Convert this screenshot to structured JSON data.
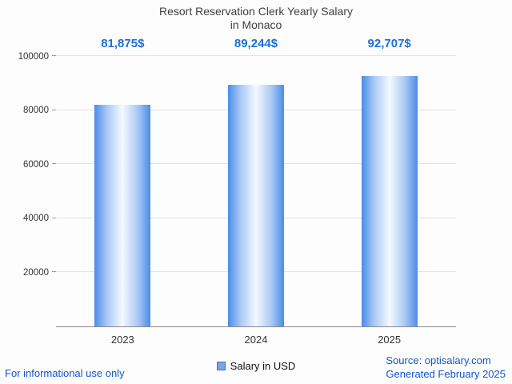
{
  "title": {
    "line1": "Resort Reservation Clerk Yearly Salary",
    "line2": "in Monaco"
  },
  "chart_data": {
    "type": "bar",
    "title": "Resort Reservation Clerk Yearly Salary in Monaco",
    "categories": [
      "2023",
      "2024",
      "2025"
    ],
    "values": [
      81875,
      89244,
      92707
    ],
    "value_labels": [
      "81,875$",
      "89,244$",
      "92,707$"
    ],
    "xlabel": "",
    "ylabel": "",
    "ylim": [
      0,
      100000
    ],
    "yticks": [
      20000,
      40000,
      60000,
      80000,
      100000
    ],
    "grid": true,
    "legend_entries": [
      "Salary in USD"
    ],
    "legend_position": "bottom"
  },
  "legend": {
    "label": "Salary in USD"
  },
  "footer": {
    "left": "For informational use only",
    "source": "Source: optisalary.com",
    "generated": "Generated February 2025"
  },
  "colors": {
    "bar_edge": "#4a8ce8",
    "bar_mid": "#a8c8f5",
    "bar_center": "#f4f9ff",
    "value_label": "#1a6fdd",
    "footer_text": "#1155cc",
    "legend_marker_fill": "#7ba3e8",
    "legend_marker_border": "#4a72b8",
    "gridline": "#e4e4e4",
    "axis": "#8a8a8a",
    "title_text": "#404040"
  }
}
